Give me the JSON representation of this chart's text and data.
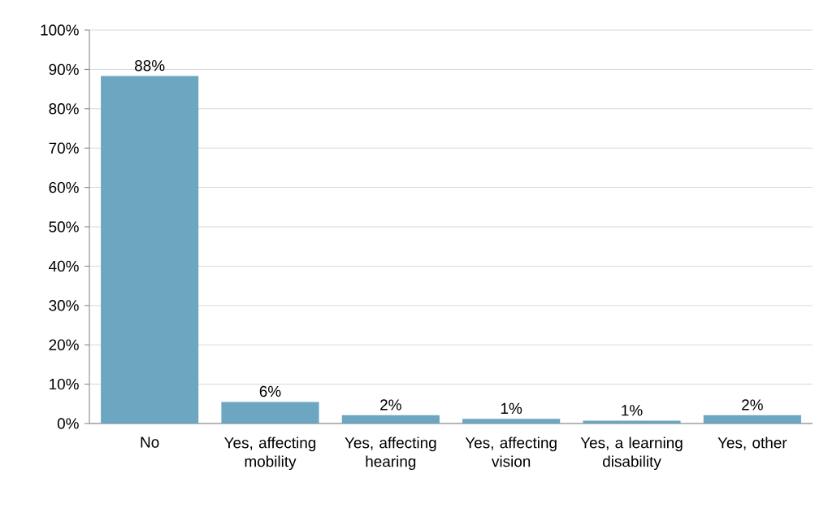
{
  "chart_data": {
    "type": "bar",
    "categories": [
      "No",
      "Yes, affecting mobility",
      "Yes, affecting hearing",
      "Yes, affecting vision",
      "Yes, a learning disability",
      "Yes, other"
    ],
    "values": [
      88.3,
      5.5,
      2.1,
      1.2,
      0.7,
      2.1
    ],
    "value_labels": [
      "88%",
      "6%",
      "2%",
      "1%",
      "1%",
      "2%"
    ],
    "color": "#6ca6c1",
    "ylim": [
      0,
      100
    ],
    "yticks": [
      {
        "value": 0,
        "label": "0%"
      },
      {
        "value": 10,
        "label": "10%"
      },
      {
        "value": 20,
        "label": "20%"
      },
      {
        "value": 30,
        "label": "30%"
      },
      {
        "value": 40,
        "label": "40%"
      },
      {
        "value": 50,
        "label": "50%"
      },
      {
        "value": 60,
        "label": "60%"
      },
      {
        "value": 70,
        "label": "70%"
      },
      {
        "value": 80,
        "label": "80%"
      },
      {
        "value": 90,
        "label": "90%"
      },
      {
        "value": 100,
        "label": "100%"
      }
    ],
    "grid": "y"
  }
}
